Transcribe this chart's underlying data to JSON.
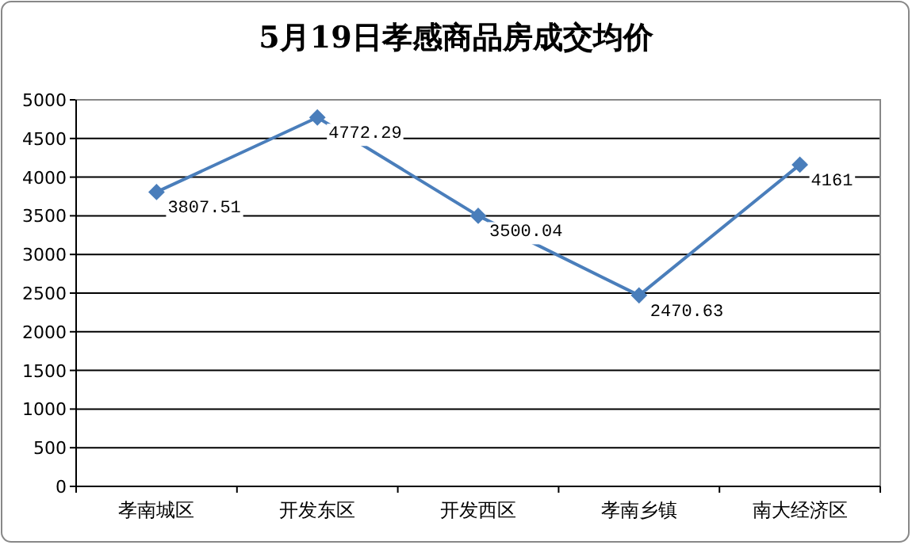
{
  "chart_data": {
    "type": "line",
    "title": "5月19日孝感商品房成交均价",
    "categories": [
      "孝南城区",
      "开发东区",
      "开发西区",
      "孝南乡镇",
      "南大经济区"
    ],
    "values": [
      3807.51,
      4772.29,
      3500.04,
      2470.63,
      4161
    ],
    "color": "#4a7ebb",
    "ylim": [
      0,
      5000
    ],
    "yticks": [
      0,
      500,
      1000,
      1500,
      2000,
      2500,
      3000,
      3500,
      4000,
      4500,
      5000
    ],
    "grid": "y",
    "marker": "diamond",
    "data_labels": true
  }
}
